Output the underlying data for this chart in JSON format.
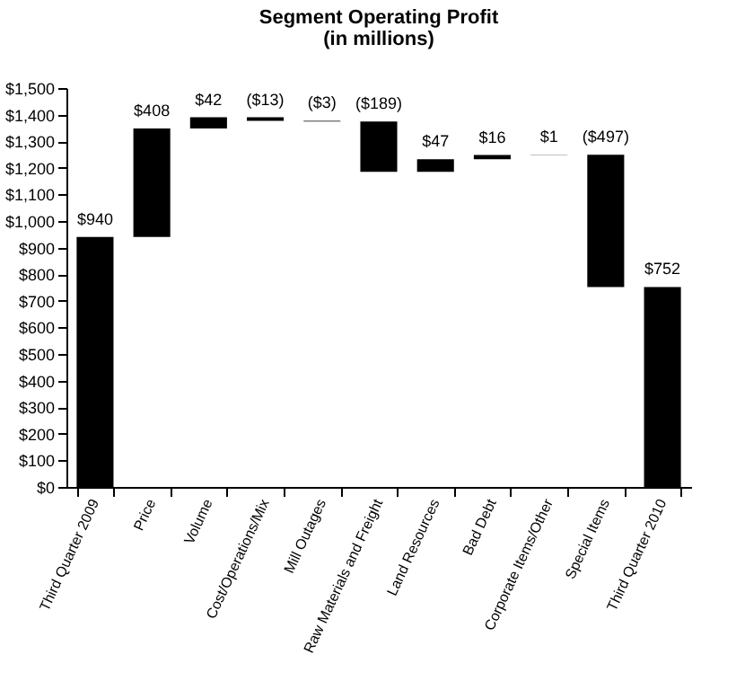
{
  "chart_data": {
    "type": "bar",
    "title": "Segment Operating Profit",
    "subtitle": "(in millions)",
    "categories": [
      "Third Quarter 2009",
      "Price",
      "Volume",
      "Cost/Operations/Mix",
      "Mill Outages",
      "Raw Materials and Freight",
      "Land Resources",
      "Bad Debt",
      "Corporate Items/Other",
      "Special Items",
      "Third Quarter 2010"
    ],
    "values": [
      940,
      408,
      42,
      -13,
      -3,
      -189,
      47,
      16,
      1,
      -497,
      752
    ],
    "base": [
      0,
      940,
      1348,
      1390,
      1377,
      1374,
      1185,
      1232,
      1248,
      1249,
      0
    ],
    "value_labels": [
      "$940",
      "$408",
      "$42",
      "($13)",
      "($3)",
      "($189)",
      "$47",
      "$16",
      "$1",
      "($497)",
      "$752"
    ],
    "color": "#000000",
    "ylim": [
      0,
      1500
    ],
    "yticks": [
      {
        "value": 0,
        "label": "$0"
      },
      {
        "value": 100,
        "label": "$100"
      },
      {
        "value": 200,
        "label": "$200"
      },
      {
        "value": 300,
        "label": "$300"
      },
      {
        "value": 400,
        "label": "$400"
      },
      {
        "value": 500,
        "label": "$500"
      },
      {
        "value": 600,
        "label": "$600"
      },
      {
        "value": 700,
        "label": "$700"
      },
      {
        "value": 800,
        "label": "$800"
      },
      {
        "value": 900,
        "label": "$900"
      },
      {
        "value": 1000,
        "label": "$1,000"
      },
      {
        "value": 1100,
        "label": "$1,100"
      },
      {
        "value": 1200,
        "label": "$1,200"
      },
      {
        "value": 1300,
        "label": "$1,300"
      },
      {
        "value": 1400,
        "label": "$1,400"
      },
      {
        "value": 1500,
        "label": "$1,500"
      }
    ],
    "grid": false
  }
}
